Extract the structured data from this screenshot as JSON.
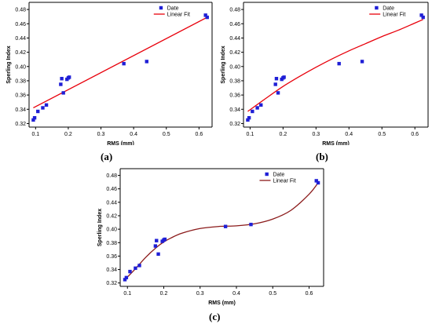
{
  "panel_labels": [
    "(a)",
    "(b)",
    "(c)"
  ],
  "colors": {
    "scatter": "#1f1fd6",
    "fit_ab": "#e8000b",
    "fit_c": "#8b1a1a",
    "axis": "#000000"
  },
  "chart_data": [
    {
      "panel": "(a)",
      "type": "scatter",
      "xlabel": "RMS (mm)",
      "ylabel": "Sperling Index",
      "xlim": [
        0.08,
        0.64
      ],
      "ylim": [
        0.315,
        0.49
      ],
      "xticks": [
        0.1,
        0.2,
        0.3,
        0.4,
        0.5,
        0.6
      ],
      "xtick_labels": [
        "0.1",
        "0.2",
        "0.3",
        "0.4",
        "0.5",
        "0.6"
      ],
      "yticks": [
        0.32,
        0.34,
        0.36,
        0.38,
        0.4,
        0.42,
        0.44,
        0.46,
        0.48
      ],
      "ytick_labels": [
        "0.32",
        "0.34",
        "0.36",
        "0.38",
        "0.40",
        "0.42",
        "0.44",
        "0.46",
        "0.48"
      ],
      "legend": {
        "position": "top-center",
        "entries": [
          "Date",
          "Linear Fit"
        ]
      },
      "series": [
        {
          "name": "Date",
          "kind": "points",
          "x": [
            0.093,
            0.097,
            0.107,
            0.122,
            0.133,
            0.177,
            0.18,
            0.185,
            0.196,
            0.2,
            0.203,
            0.37,
            0.44,
            0.62,
            0.625
          ],
          "y": [
            0.325,
            0.328,
            0.337,
            0.342,
            0.346,
            0.375,
            0.383,
            0.363,
            0.382,
            0.384,
            0.385,
            0.404,
            0.407,
            0.472,
            0.469
          ]
        },
        {
          "name": "Linear Fit",
          "kind": "line",
          "x": [
            0.093,
            0.625
          ],
          "y": [
            0.342,
            0.469
          ]
        }
      ]
    },
    {
      "panel": "(b)",
      "type": "scatter",
      "xlabel": "RMS (mm)",
      "ylabel": "Sperling Index",
      "xlim": [
        0.08,
        0.64
      ],
      "ylim": [
        0.315,
        0.49
      ],
      "xticks": [
        0.1,
        0.2,
        0.3,
        0.4,
        0.5,
        0.6
      ],
      "xtick_labels": [
        "0.1",
        "0.2",
        "0.3",
        "0.4",
        "0.5",
        "0.6"
      ],
      "yticks": [
        0.32,
        0.34,
        0.36,
        0.38,
        0.4,
        0.42,
        0.44,
        0.46,
        0.48
      ],
      "ytick_labels": [
        "0.32",
        "0.34",
        "0.36",
        "0.38",
        "0.40",
        "0.42",
        "0.44",
        "0.46",
        "0.48"
      ],
      "legend": {
        "position": "top-center",
        "entries": [
          "Date",
          "Linear Fit"
        ]
      },
      "series": [
        {
          "name": "Date",
          "kind": "points",
          "x": [
            0.093,
            0.097,
            0.107,
            0.122,
            0.133,
            0.177,
            0.18,
            0.185,
            0.196,
            0.2,
            0.203,
            0.37,
            0.44,
            0.62,
            0.625
          ],
          "y": [
            0.325,
            0.328,
            0.337,
            0.342,
            0.346,
            0.375,
            0.383,
            0.363,
            0.382,
            0.384,
            0.385,
            0.404,
            0.407,
            0.472,
            0.469
          ]
        },
        {
          "name": "Linear Fit",
          "kind": "line",
          "x": [
            0.093,
            0.15,
            0.2,
            0.25,
            0.3,
            0.35,
            0.4,
            0.45,
            0.5,
            0.55,
            0.6,
            0.625
          ],
          "y": [
            0.337,
            0.356,
            0.372,
            0.386,
            0.399,
            0.411,
            0.422,
            0.432,
            0.442,
            0.451,
            0.461,
            0.466
          ]
        }
      ]
    },
    {
      "panel": "(c)",
      "type": "scatter",
      "xlabel": "RMS (mm)",
      "ylabel": "Sperling Index",
      "xlim": [
        0.08,
        0.64
      ],
      "ylim": [
        0.315,
        0.49
      ],
      "xticks": [
        0.1,
        0.2,
        0.3,
        0.4,
        0.5,
        0.6
      ],
      "xtick_labels": [
        "0.1",
        "0.2",
        "0.3",
        "0.4",
        "0.5",
        "0.6"
      ],
      "yticks": [
        0.32,
        0.34,
        0.36,
        0.38,
        0.4,
        0.42,
        0.44,
        0.46,
        0.48
      ],
      "ytick_labels": [
        "0.32",
        "0.34",
        "0.36",
        "0.38",
        "0.40",
        "0.42",
        "0.44",
        "0.46",
        "0.48"
      ],
      "legend": {
        "position": "top-center",
        "entries": [
          "Date",
          "Linear Fit"
        ]
      },
      "series": [
        {
          "name": "Date",
          "kind": "points",
          "x": [
            0.093,
            0.097,
            0.107,
            0.122,
            0.133,
            0.177,
            0.18,
            0.185,
            0.196,
            0.2,
            0.203,
            0.37,
            0.44,
            0.62,
            0.625
          ],
          "y": [
            0.325,
            0.328,
            0.337,
            0.342,
            0.346,
            0.375,
            0.383,
            0.363,
            0.382,
            0.384,
            0.385,
            0.404,
            0.407,
            0.472,
            0.469
          ]
        },
        {
          "name": "Linear Fit",
          "kind": "line",
          "x": [
            0.093,
            0.12,
            0.15,
            0.18,
            0.2,
            0.22,
            0.25,
            0.3,
            0.35,
            0.4,
            0.45,
            0.5,
            0.55,
            0.6,
            0.625
          ],
          "y": [
            0.325,
            0.34,
            0.358,
            0.373,
            0.381,
            0.387,
            0.394,
            0.401,
            0.404,
            0.405,
            0.408,
            0.415,
            0.428,
            0.452,
            0.469
          ]
        }
      ]
    }
  ]
}
